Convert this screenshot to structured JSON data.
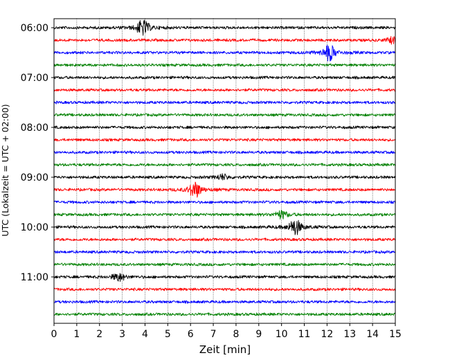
{
  "chart_data": {
    "type": "line",
    "title": "",
    "xlabel": "Zeit  [min]",
    "ylabel": "UTC (Lokalzeit = UTC + 02:00)",
    "xlim": [
      0,
      15
    ],
    "x_ticks": [
      "0",
      "1",
      "2",
      "3",
      "4",
      "5",
      "6",
      "7",
      "8",
      "9",
      "10",
      "11",
      "12",
      "13",
      "14",
      "15"
    ],
    "y_ticks": [
      "06:00",
      "07:00",
      "08:00",
      "09:00",
      "10:00",
      "11:00"
    ],
    "grid": "vertical dotted lines at each minute",
    "trace_colors": [
      "#000000",
      "#ff0000",
      "#0000ff",
      "#008000"
    ],
    "series": [
      {
        "start": "06:00",
        "color": "#000000",
        "events": [
          {
            "minute": 3.9,
            "amplitude": 1.0
          }
        ]
      },
      {
        "start": "06:15",
        "color": "#ff0000",
        "events": [
          {
            "minute": 14.9,
            "amplitude": 0.4
          }
        ]
      },
      {
        "start": "06:30",
        "color": "#0000ff",
        "events": [
          {
            "minute": 12.1,
            "amplitude": 1.0
          }
        ]
      },
      {
        "start": "06:45",
        "color": "#008000",
        "events": []
      },
      {
        "start": "07:00",
        "color": "#000000",
        "events": []
      },
      {
        "start": "07:15",
        "color": "#ff0000",
        "events": []
      },
      {
        "start": "07:30",
        "color": "#0000ff",
        "events": []
      },
      {
        "start": "07:45",
        "color": "#008000",
        "events": []
      },
      {
        "start": "08:00",
        "color": "#000000",
        "events": []
      },
      {
        "start": "08:15",
        "color": "#ff0000",
        "events": []
      },
      {
        "start": "08:30",
        "color": "#0000ff",
        "events": []
      },
      {
        "start": "08:45",
        "color": "#008000",
        "events": []
      },
      {
        "start": "09:00",
        "color": "#000000",
        "events": [
          {
            "minute": 7.4,
            "amplitude": 0.35
          }
        ]
      },
      {
        "start": "09:15",
        "color": "#ff0000",
        "events": [
          {
            "minute": 6.2,
            "amplitude": 1.0
          }
        ]
      },
      {
        "start": "09:30",
        "color": "#0000ff",
        "events": []
      },
      {
        "start": "09:45",
        "color": "#008000",
        "events": [
          {
            "minute": 10.0,
            "amplitude": 0.5
          }
        ]
      },
      {
        "start": "10:00",
        "color": "#000000",
        "events": [
          {
            "minute": 10.6,
            "amplitude": 1.0
          }
        ]
      },
      {
        "start": "10:15",
        "color": "#ff0000",
        "events": []
      },
      {
        "start": "10:30",
        "color": "#0000ff",
        "events": []
      },
      {
        "start": "10:45",
        "color": "#008000",
        "events": []
      },
      {
        "start": "11:00",
        "color": "#000000",
        "events": [
          {
            "minute": 2.85,
            "amplitude": 0.5
          }
        ]
      },
      {
        "start": "11:15",
        "color": "#ff0000",
        "events": []
      },
      {
        "start": "11:30",
        "color": "#0000ff",
        "events": []
      },
      {
        "start": "11:45",
        "color": "#008000",
        "events": []
      }
    ]
  }
}
